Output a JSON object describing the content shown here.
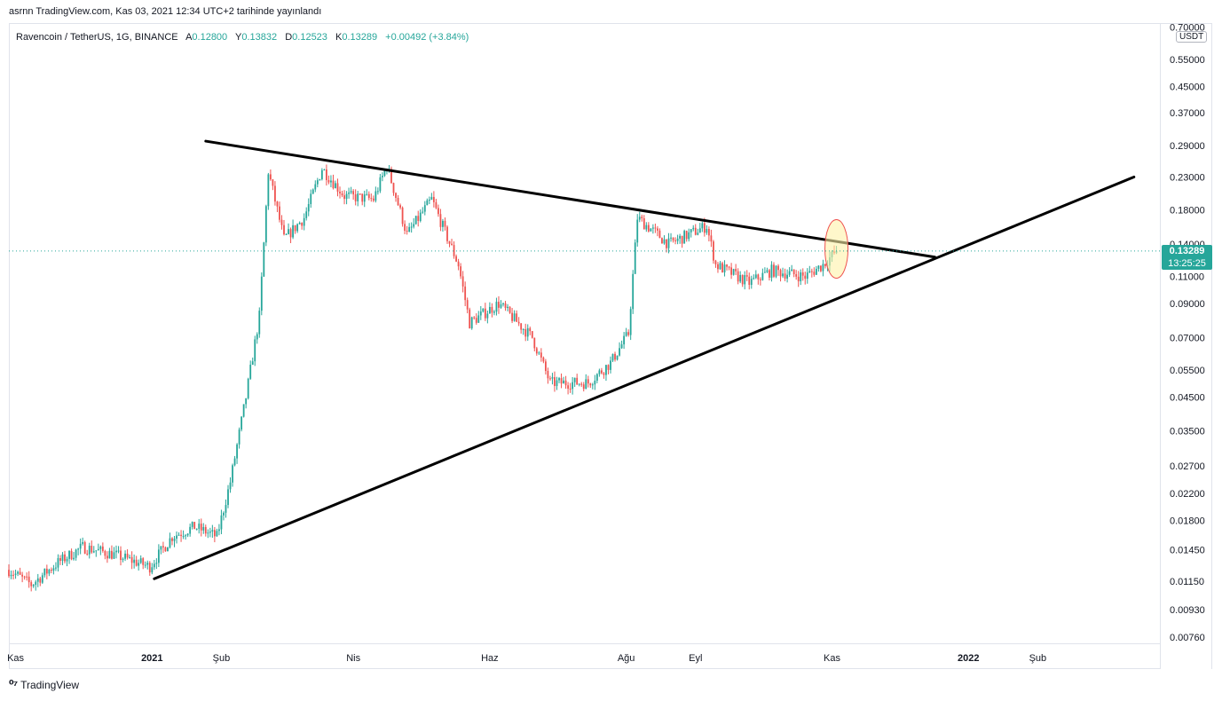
{
  "publish_line": "asrnn TradingView.com, Kas 03, 2021 12:34 UTC+2 tarihinde yayınlandı",
  "legend": {
    "symbol": "Ravencoin / TetherUS, 1G, BINANCE",
    "open_key": "A",
    "open": "0.12800",
    "high_key": "Y",
    "high": "0.13832",
    "low_key": "D",
    "low": "0.12523",
    "close_key": "K",
    "close": "0.13289",
    "change": "+0.00492 (+3.84%)"
  },
  "price_axis": {
    "currency": "USDT",
    "current_price": "0.13289",
    "countdown": "13:25:25"
  },
  "footer": {
    "logo_icon": "tradingview-logo-icon",
    "brand": "TradingView"
  },
  "colors": {
    "up": "#26a69a",
    "down": "#ef5350",
    "line": "#000000",
    "highlight": "#fff2a8"
  },
  "chart_data": {
    "type": "candlestick",
    "y_scale": "log",
    "ylim": [
      0.0072,
      0.72
    ],
    "y_ticks": [
      "0.70000",
      "0.55000",
      "0.45000",
      "0.37000",
      "0.29000",
      "0.23000",
      "0.18000",
      "0.14000",
      "0.11000",
      "0.09000",
      "0.07000",
      "0.05500",
      "0.04500",
      "0.03500",
      "0.02700",
      "0.02200",
      "0.01800",
      "0.01450",
      "0.01150",
      "0.00930",
      "0.00760"
    ],
    "x_ticks": [
      "Kas",
      "2021",
      "Şub",
      "Nis",
      "Haz",
      "Ağu",
      "Eyl",
      "Kas",
      "2022",
      "Şub"
    ],
    "x_tick_dates": [
      "2020-11-01",
      "2021-01-01",
      "2021-02-01",
      "2021-04-01",
      "2021-06-01",
      "2021-08-01",
      "2021-09-01",
      "2021-11-01",
      "2022-01-01",
      "2022-02-01"
    ],
    "x_range": [
      "2020-10-29",
      "2022-03-28"
    ],
    "anchors": [
      [
        "2020-10-29",
        0.0125
      ],
      [
        "2020-11-08",
        0.0112
      ],
      [
        "2020-11-20",
        0.0132
      ],
      [
        "2020-12-01",
        0.0148
      ],
      [
        "2020-12-15",
        0.014
      ],
      [
        "2020-12-31",
        0.0128
      ],
      [
        "2021-01-10",
        0.016
      ],
      [
        "2021-01-20",
        0.0172
      ],
      [
        "2021-01-30",
        0.016
      ],
      [
        "2021-02-05",
        0.024
      ],
      [
        "2021-02-12",
        0.045
      ],
      [
        "2021-02-18",
        0.082
      ],
      [
        "2021-02-22",
        0.24
      ],
      [
        "2021-03-01",
        0.145
      ],
      [
        "2021-03-10",
        0.17
      ],
      [
        "2021-03-18",
        0.245
      ],
      [
        "2021-03-28",
        0.2
      ],
      [
        "2021-04-10",
        0.195
      ],
      [
        "2021-04-16",
        0.25
      ],
      [
        "2021-04-25",
        0.15
      ],
      [
        "2021-05-06",
        0.195
      ],
      [
        "2021-05-18",
        0.12
      ],
      [
        "2021-05-23",
        0.078
      ],
      [
        "2021-06-05",
        0.09
      ],
      [
        "2021-06-20",
        0.07
      ],
      [
        "2021-06-28",
        0.05
      ],
      [
        "2021-07-15",
        0.05
      ],
      [
        "2021-07-25",
        0.058
      ],
      [
        "2021-08-02",
        0.072
      ],
      [
        "2021-08-06",
        0.17
      ],
      [
        "2021-08-20",
        0.14
      ],
      [
        "2021-09-06",
        0.16
      ],
      [
        "2021-09-10",
        0.12
      ],
      [
        "2021-09-25",
        0.105
      ],
      [
        "2021-10-05",
        0.115
      ],
      [
        "2021-10-20",
        0.11
      ],
      [
        "2021-10-28",
        0.12
      ],
      [
        "2021-11-03",
        0.1329
      ]
    ],
    "upper_trendline": [
      [
        "2021-01-25",
        0.3
      ],
      [
        "2021-12-17",
        0.127
      ]
    ],
    "lower_trendline": [
      [
        "2021-01-02",
        0.0117
      ],
      [
        "2022-03-16",
        0.23
      ]
    ],
    "highlight": {
      "date": "2021-11-03",
      "price": 0.135
    }
  }
}
